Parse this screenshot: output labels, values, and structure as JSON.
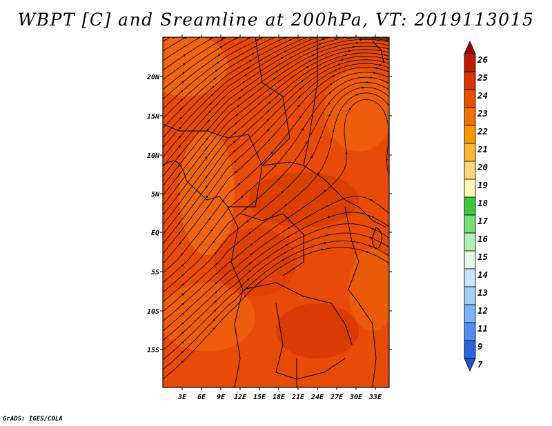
{
  "title": "WBPT [C] and Sreamline at 200hPa, VT: 2019113015",
  "footer": "GrADS: IGES/COLA",
  "map": {
    "lat_labels": [
      "20N",
      "15N",
      "10N",
      "5N",
      "EQ",
      "5S",
      "10S",
      "15S"
    ],
    "lon_labels": [
      "3E",
      "6E",
      "9E",
      "12E",
      "15E",
      "18E",
      "21E",
      "24E",
      "27E",
      "30E",
      "33E"
    ],
    "shaded_variable": "WBPT",
    "contour_variable": "Streamline"
  },
  "colorbar": {
    "levels": [
      "26",
      "25",
      "24",
      "23",
      "22",
      "21",
      "20",
      "19",
      "18",
      "17",
      "16",
      "15",
      "14",
      "13",
      "12",
      "11",
      "9",
      "7"
    ],
    "colors": [
      "#a50000",
      "#c01a00",
      "#dc3200",
      "#e85000",
      "#f07000",
      "#f89800",
      "#fbb830",
      "#fcd878",
      "#fef8b0",
      "#3cc83c",
      "#78dc78",
      "#b4f0b4",
      "#e6fae6",
      "#c8e6fa",
      "#a0d2fa",
      "#78b4fa",
      "#508cf0",
      "#2864dc",
      "#1e50c8"
    ]
  }
}
